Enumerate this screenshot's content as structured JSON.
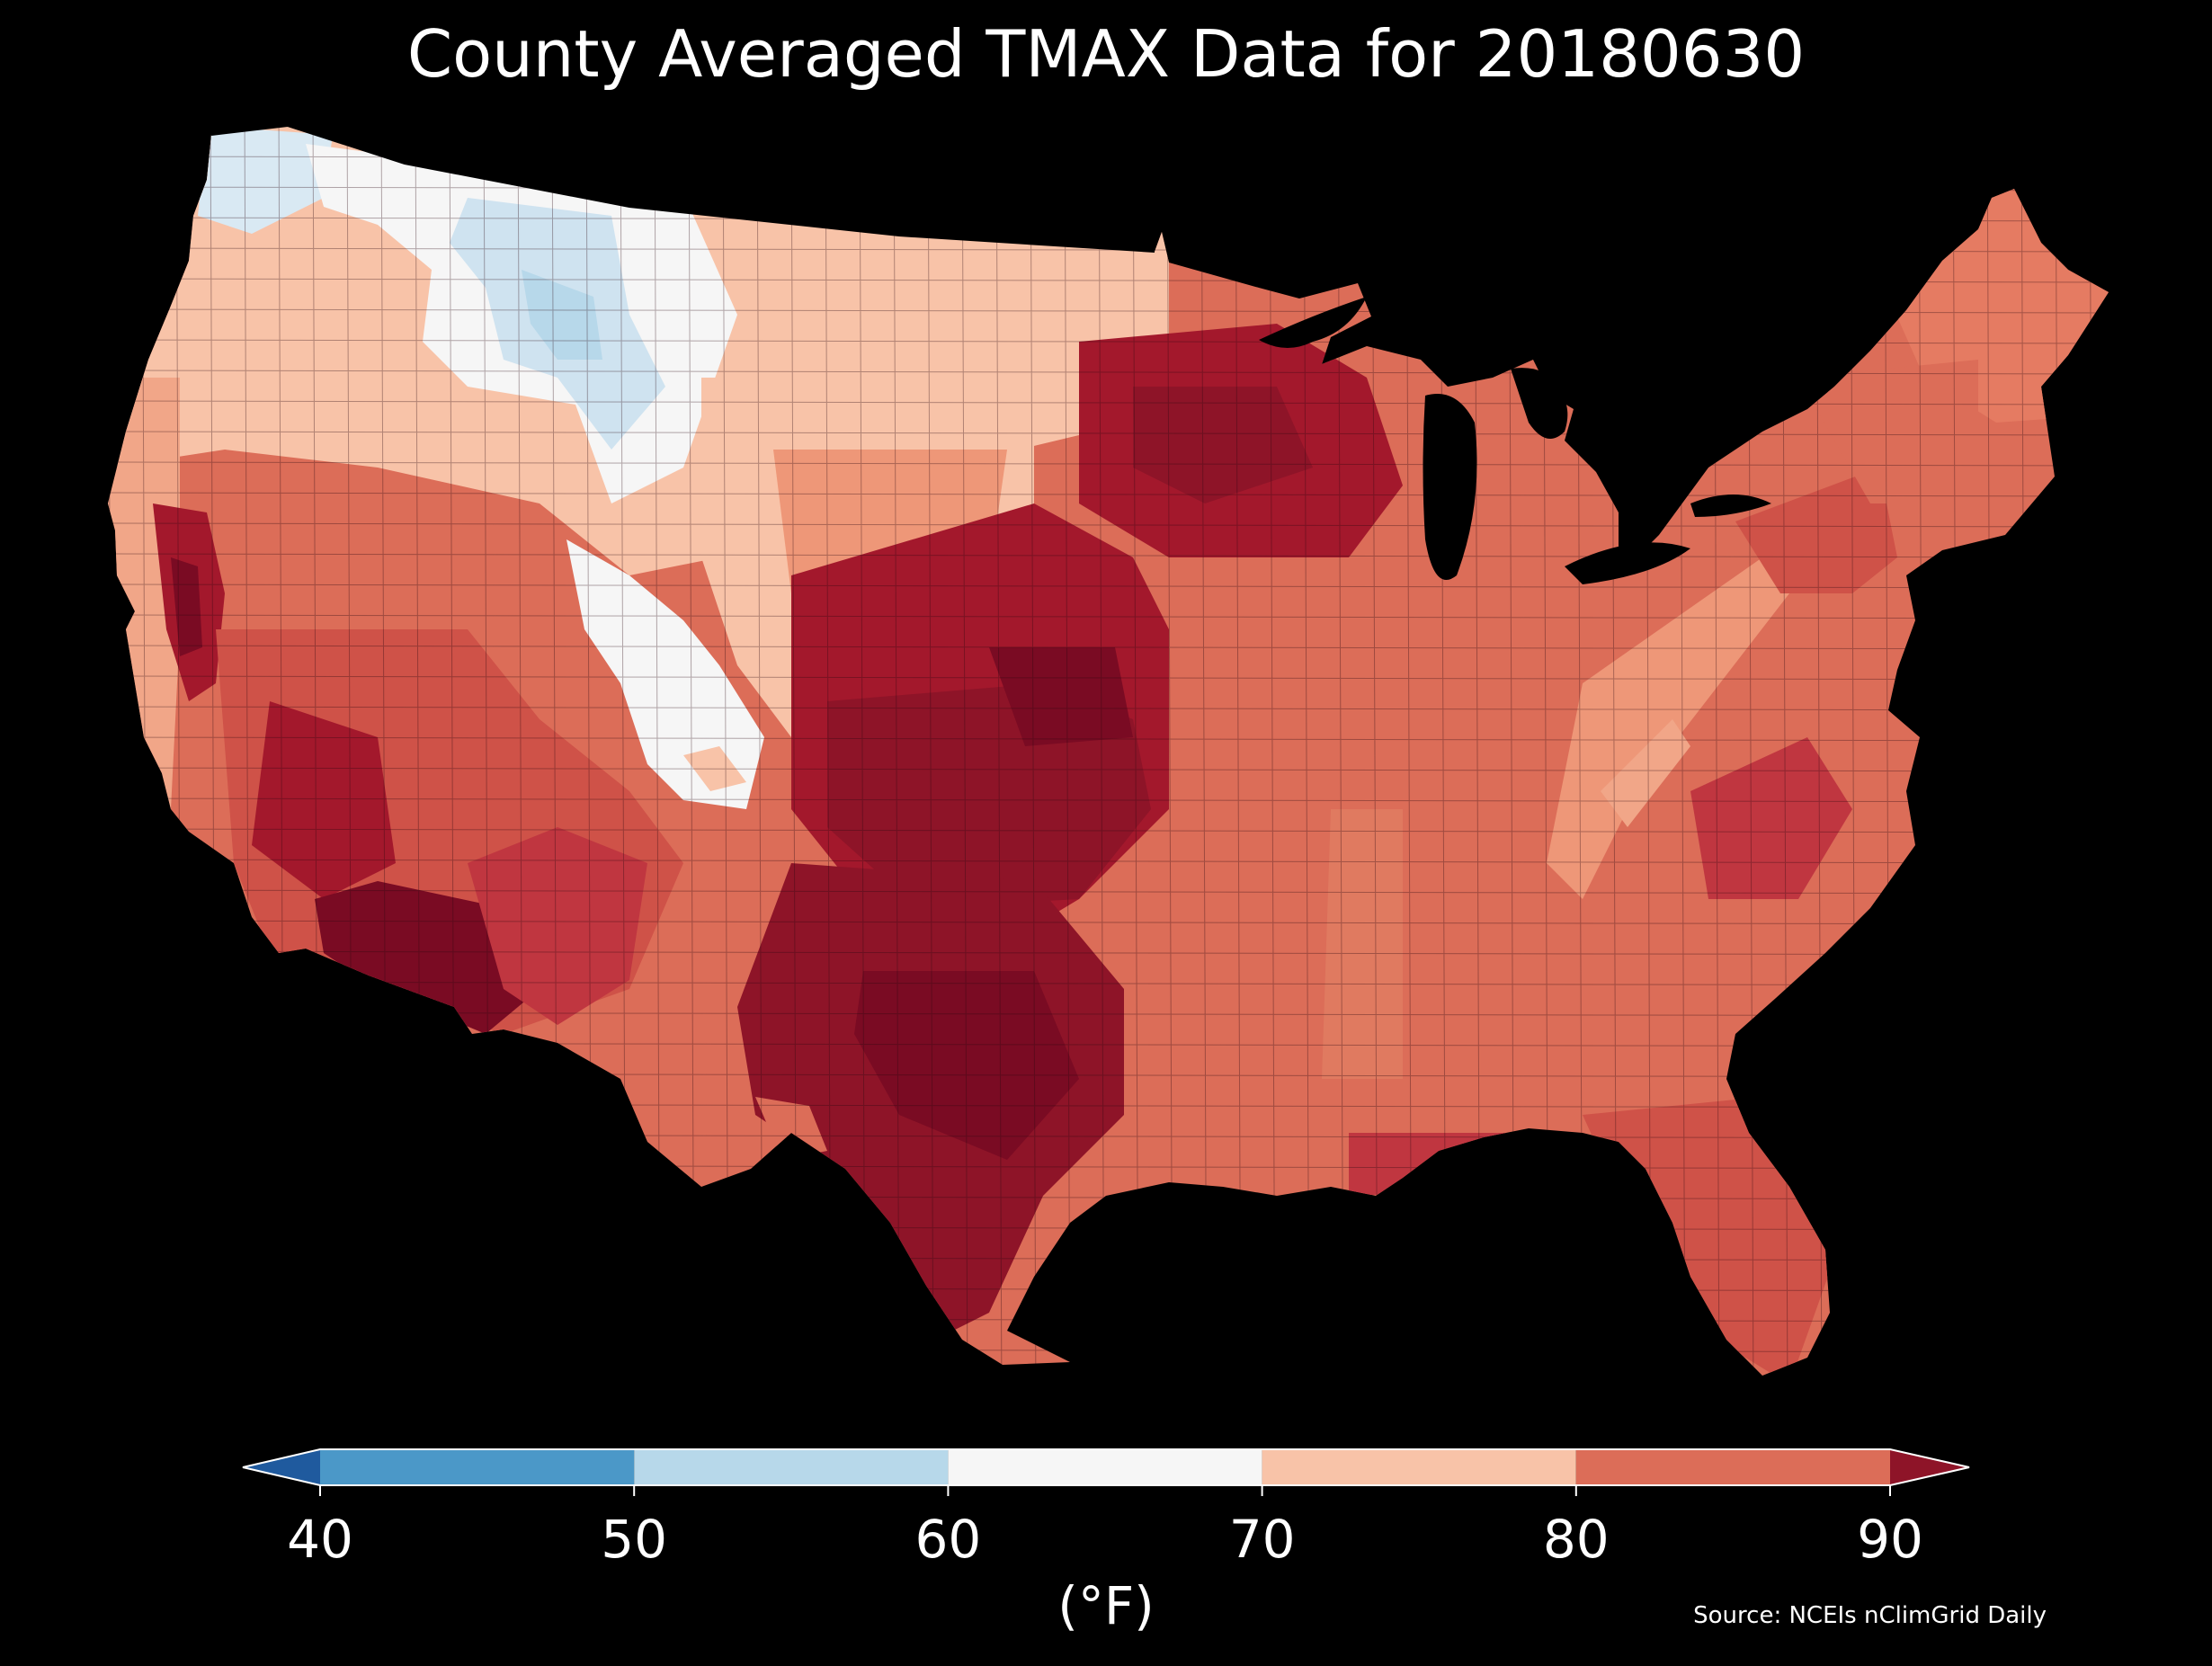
{
  "title": "County Averaged TMAX Data for 20180630",
  "colorbar": {
    "unit_label": "(°F)",
    "ticks": [
      "40",
      "50",
      "60",
      "70",
      "80",
      "90"
    ],
    "bins": [
      {
        "range": "<40",
        "color": "#1f5a9e"
      },
      {
        "range": "40-50",
        "color": "#4b98c8"
      },
      {
        "range": "50-60",
        "color": "#b7d8ea"
      },
      {
        "range": "60-70",
        "color": "#f6f6f6"
      },
      {
        "range": "70-80",
        "color": "#f8c3a8"
      },
      {
        "range": "80-90",
        "color": "#dc6d58"
      },
      {
        "range": ">90",
        "color": "#8e1428"
      }
    ],
    "extend": "both"
  },
  "source": "Source: NCEIs nClimGrid Daily",
  "legend_placement": "bottom"
}
